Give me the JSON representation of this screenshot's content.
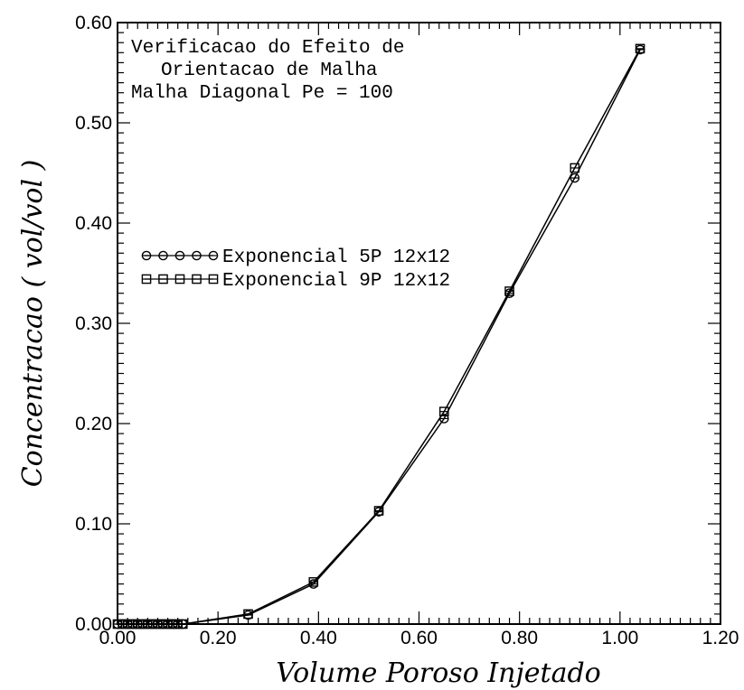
{
  "chart_data": {
    "type": "line",
    "xlabel": "Volume Poroso Injetado",
    "ylabel": "Concentracao ( vol/vol )",
    "xlim": [
      0.0,
      1.2
    ],
    "ylim": [
      0.0,
      0.6
    ],
    "x_ticks": [
      "0.00",
      "0.20",
      "0.40",
      "0.60",
      "0.80",
      "1.00",
      "1.20"
    ],
    "y_ticks": [
      "0.00",
      "0.10",
      "0.20",
      "0.30",
      "0.40",
      "0.50",
      "0.60"
    ],
    "annotation_lines": [
      "Verificacao do Efeito de",
      "Orientacao de Malha",
      "Malha Diagonal Pe = 100"
    ],
    "legend_position": "upper-left",
    "grid": false,
    "series": [
      {
        "name": "Exponencial 5P 12x12",
        "marker": "circle",
        "points": [
          [
            0.0,
            0.0
          ],
          [
            0.01,
            0.0
          ],
          [
            0.02,
            0.0
          ],
          [
            0.03,
            0.0
          ],
          [
            0.04,
            0.0
          ],
          [
            0.05,
            0.0
          ],
          [
            0.06,
            0.0
          ],
          [
            0.07,
            0.0
          ],
          [
            0.08,
            0.0
          ],
          [
            0.09,
            0.0
          ],
          [
            0.1,
            0.0
          ],
          [
            0.11,
            0.0
          ],
          [
            0.12,
            0.0
          ],
          [
            0.13,
            0.0
          ],
          [
            0.26,
            0.009
          ],
          [
            0.39,
            0.04
          ],
          [
            0.52,
            0.112
          ],
          [
            0.65,
            0.205
          ],
          [
            0.78,
            0.33
          ],
          [
            0.91,
            0.445
          ],
          [
            1.04,
            0.573
          ]
        ]
      },
      {
        "name": "Exponencial 9P 12x12",
        "marker": "square",
        "points": [
          [
            0.0,
            0.0
          ],
          [
            0.01,
            0.0
          ],
          [
            0.02,
            0.0
          ],
          [
            0.03,
            0.0
          ],
          [
            0.04,
            0.0
          ],
          [
            0.05,
            0.0
          ],
          [
            0.06,
            0.0
          ],
          [
            0.07,
            0.0
          ],
          [
            0.08,
            0.0
          ],
          [
            0.09,
            0.0
          ],
          [
            0.1,
            0.0
          ],
          [
            0.11,
            0.0
          ],
          [
            0.12,
            0.0
          ],
          [
            0.13,
            0.0
          ],
          [
            0.26,
            0.01
          ],
          [
            0.39,
            0.042
          ],
          [
            0.52,
            0.113
          ],
          [
            0.65,
            0.212
          ],
          [
            0.78,
            0.332
          ],
          [
            0.91,
            0.455
          ],
          [
            1.04,
            0.574
          ]
        ]
      }
    ]
  }
}
